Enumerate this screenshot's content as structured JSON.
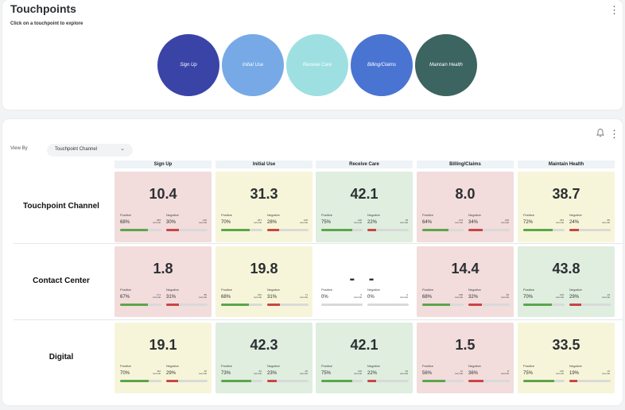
{
  "touchpoints_card": {
    "title": "Touchpoints",
    "subtitle": "Click on a touchpoint to explore",
    "circles": [
      {
        "label": "Sign Up",
        "color": "#3a44a7"
      },
      {
        "label": "Initial Use",
        "color": "#76a9e6"
      },
      {
        "label": "Receive Care",
        "color": "#9ee0e2"
      },
      {
        "label": "Billing/Claims",
        "color": "#4a74d2"
      },
      {
        "label": "Maintain Health",
        "color": "#3c6460"
      }
    ]
  },
  "analysis_card": {
    "view_by_label": "View By",
    "view_by_value": "Touchpoint Channel",
    "columns": [
      "Sign Up",
      "Initial Use",
      "Receive Care",
      "Billing/Claims",
      "Maintain Health"
    ],
    "positive_label": "Positive",
    "negative_label": "Negative",
    "rows": [
      {
        "label": "Touchpoint Channel",
        "cells": [
          {
            "score": "10.4",
            "tone": "red",
            "pos_pct": "68%",
            "pos_records": "283\nrecords",
            "neg_pct": "30%",
            "neg_records": "126\nrecords",
            "pos": 0.68,
            "neg": 0.3
          },
          {
            "score": "31.3",
            "tone": "yellow",
            "pos_pct": "70%",
            "pos_records": "257\nrecords",
            "neg_pct": "28%",
            "neg_records": "105\nrecords",
            "pos": 0.7,
            "neg": 0.28
          },
          {
            "score": "42.1",
            "tone": "green",
            "pos_pct": "75%",
            "pos_records": "120\nrecords",
            "neg_pct": "22%",
            "neg_records": "18\nrecords",
            "pos": 0.75,
            "neg": 0.22
          },
          {
            "score": "8.0",
            "tone": "red",
            "pos_pct": "64%",
            "pos_records": "273\nrecords",
            "neg_pct": "34%",
            "neg_records": "169\nrecords",
            "pos": 0.64,
            "neg": 0.34
          },
          {
            "score": "38.7",
            "tone": "yellow",
            "pos_pct": "72%",
            "pos_records": "253\nrecords",
            "neg_pct": "24%",
            "neg_records": "85\nrecords",
            "pos": 0.72,
            "neg": 0.24
          }
        ]
      },
      {
        "label": "Contact Center",
        "cells": [
          {
            "score": "1.8",
            "tone": "red",
            "pos_pct": "67%",
            "pos_records": "171\nrecords",
            "neg_pct": "31%",
            "neg_records": "80\nrecords",
            "pos": 0.67,
            "neg": 0.31
          },
          {
            "score": "19.8",
            "tone": "yellow",
            "pos_pct": "68%",
            "pos_records": "152\nrecords",
            "neg_pct": "31%",
            "neg_records": "71\nrecords",
            "pos": 0.68,
            "neg": 0.31
          },
          {
            "score": "- -",
            "tone": "empty",
            "pos_pct": "0%",
            "pos_records": "0\nrecords",
            "neg_pct": "0%",
            "neg_records": "0\nrecords",
            "pos": 0,
            "neg": 0
          },
          {
            "score": "14.4",
            "tone": "red",
            "pos_pct": "68%",
            "pos_records": "168\nrecords",
            "neg_pct": "32%",
            "neg_records": "90\nrecords",
            "pos": 0.68,
            "neg": 0.32
          },
          {
            "score": "43.8",
            "tone": "green",
            "pos_pct": "70%",
            "pos_records": "120\nrecords",
            "neg_pct": "29%",
            "neg_records": "29\nrecords",
            "pos": 0.7,
            "neg": 0.29
          }
        ]
      },
      {
        "label": "Digital",
        "cells": [
          {
            "score": "19.1",
            "tone": "yellow",
            "pos_pct": "70%",
            "pos_records": "112\nrecords",
            "neg_pct": "29%",
            "neg_records": "46\nrecords",
            "pos": 0.7,
            "neg": 0.29
          },
          {
            "score": "42.3",
            "tone": "green",
            "pos_pct": "73%",
            "pos_records": "64\nrecords",
            "neg_pct": "23%",
            "neg_records": "20\nrecords",
            "pos": 0.73,
            "neg": 0.23
          },
          {
            "score": "42.1",
            "tone": "green",
            "pos_pct": "75%",
            "pos_records": "120\nrecords",
            "neg_pct": "22%",
            "neg_records": "34\nrecords",
            "pos": 0.75,
            "neg": 0.22
          },
          {
            "score": "1.5",
            "tone": "red",
            "pos_pct": "56%",
            "pos_records": "11\nrecords",
            "neg_pct": "36%",
            "neg_records": "8\nrecords",
            "pos": 0.56,
            "neg": 0.36
          },
          {
            "score": "33.5",
            "tone": "yellow",
            "pos_pct": "75%",
            "pos_records": "120\nrecords",
            "neg_pct": "19%",
            "neg_records": "19\nrecords",
            "pos": 0.75,
            "neg": 0.19
          }
        ]
      }
    ]
  }
}
